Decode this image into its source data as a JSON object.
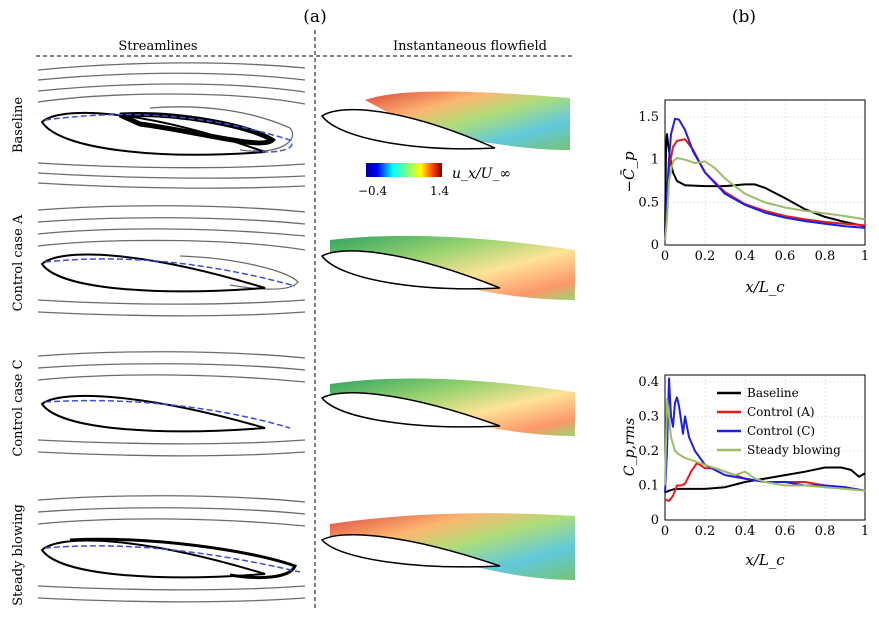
{
  "panel_a": {
    "label": "(a)",
    "col_streamlines": "Streamlines",
    "col_flowfield": "Instantaneous flowfield",
    "rows": [
      "Baseline",
      "Control case A",
      "Control case C",
      "Steady blowing"
    ],
    "colorbar": {
      "label": "u_x/U_∞",
      "min_label": "−0.4",
      "max_label": "1.4"
    }
  },
  "panel_b": {
    "label": "(b)"
  },
  "colors": {
    "baseline": "#000000",
    "control_a": "#e41a1c",
    "control_c": "#1f1fe0",
    "steady": "#9dbd6b",
    "separation": "#3b4fd8"
  },
  "chart_data": [
    {
      "type": "line",
      "title": "",
      "ylabel": "−C̄_p",
      "xlabel": "x/L_c",
      "xlim": [
        0,
        1
      ],
      "ylim": [
        0,
        1.7
      ],
      "xticks": [
        "0",
        "0.2",
        "0.4",
        "0.6",
        "0.8",
        "1"
      ],
      "yticks": [
        "0",
        "0.5",
        "1",
        "1.5"
      ],
      "grid": true,
      "series": [
        {
          "name": "Baseline",
          "color": "#000000",
          "x": [
            0,
            0.005,
            0.01,
            0.02,
            0.04,
            0.06,
            0.1,
            0.2,
            0.3,
            0.4,
            0.45,
            0.5,
            0.6,
            0.7,
            0.8,
            0.9,
            1.0
          ],
          "y": [
            0.1,
            1.15,
            1.3,
            1.1,
            0.85,
            0.75,
            0.7,
            0.69,
            0.69,
            0.71,
            0.71,
            0.67,
            0.55,
            0.42,
            0.33,
            0.27,
            0.22
          ]
        },
        {
          "name": "Control (A)",
          "color": "#e41a1c",
          "x": [
            0,
            0.01,
            0.02,
            0.04,
            0.06,
            0.1,
            0.14,
            0.2,
            0.3,
            0.4,
            0.5,
            0.6,
            0.7,
            0.8,
            0.9,
            1.0
          ],
          "y": [
            0.05,
            0.5,
            0.9,
            1.15,
            1.22,
            1.24,
            1.12,
            0.85,
            0.62,
            0.48,
            0.4,
            0.34,
            0.3,
            0.27,
            0.25,
            0.23
          ]
        },
        {
          "name": "Control (C)",
          "color": "#1f1fe0",
          "x": [
            0,
            0.01,
            0.02,
            0.03,
            0.05,
            0.07,
            0.1,
            0.14,
            0.2,
            0.3,
            0.4,
            0.5,
            0.6,
            0.7,
            0.8,
            0.9,
            1.0
          ],
          "y": [
            0.05,
            0.6,
            1.0,
            1.3,
            1.48,
            1.47,
            1.35,
            1.1,
            0.85,
            0.6,
            0.47,
            0.38,
            0.32,
            0.28,
            0.25,
            0.22,
            0.2
          ]
        },
        {
          "name": "Steady blowing",
          "color": "#9dbd6b",
          "x": [
            0,
            0.01,
            0.02,
            0.04,
            0.06,
            0.1,
            0.15,
            0.2,
            0.25,
            0.3,
            0.4,
            0.5,
            0.6,
            0.7,
            0.8,
            0.9,
            1.0
          ],
          "y": [
            0.05,
            0.3,
            0.75,
            0.98,
            1.02,
            1.0,
            0.96,
            0.98,
            0.9,
            0.78,
            0.6,
            0.5,
            0.44,
            0.4,
            0.37,
            0.34,
            0.3
          ]
        }
      ]
    },
    {
      "type": "line",
      "title": "",
      "ylabel": "C_p,rms",
      "xlabel": "x/L_c",
      "xlim": [
        0,
        1
      ],
      "ylim": [
        0,
        0.42
      ],
      "xticks": [
        "0",
        "0.2",
        "0.4",
        "0.6",
        "0.8",
        "1"
      ],
      "yticks": [
        "0",
        "0.1",
        "0.2",
        "0.3",
        "0.4"
      ],
      "grid": true,
      "legend": "top-right",
      "series": [
        {
          "name": "Baseline",
          "color": "#000000",
          "x": [
            0,
            0.02,
            0.05,
            0.1,
            0.2,
            0.3,
            0.4,
            0.5,
            0.6,
            0.7,
            0.8,
            0.88,
            0.93,
            0.97,
            1.0
          ],
          "y": [
            0.08,
            0.085,
            0.09,
            0.09,
            0.09,
            0.095,
            0.11,
            0.12,
            0.13,
            0.14,
            0.152,
            0.152,
            0.145,
            0.125,
            0.135
          ]
        },
        {
          "name": "Control (A)",
          "color": "#e41a1c",
          "x": [
            0,
            0.02,
            0.04,
            0.06,
            0.08,
            0.1,
            0.13,
            0.16,
            0.2,
            0.25,
            0.3,
            0.35,
            0.4,
            0.5,
            0.6,
            0.7,
            0.8,
            0.9,
            1.0
          ],
          "y": [
            0.06,
            0.055,
            0.07,
            0.1,
            0.1,
            0.105,
            0.14,
            0.165,
            0.15,
            0.15,
            0.14,
            0.13,
            0.12,
            0.11,
            0.11,
            0.11,
            0.1,
            0.095,
            0.085
          ]
        },
        {
          "name": "Control (C)",
          "color": "#1f1fe0",
          "x": [
            0,
            0.01,
            0.02,
            0.03,
            0.04,
            0.05,
            0.06,
            0.07,
            0.09,
            0.1,
            0.12,
            0.15,
            0.2,
            0.3,
            0.4,
            0.5,
            0.6,
            0.7,
            0.8,
            0.9,
            1.0
          ],
          "y": [
            0.08,
            0.2,
            0.41,
            0.3,
            0.27,
            0.34,
            0.355,
            0.33,
            0.25,
            0.3,
            0.24,
            0.2,
            0.16,
            0.13,
            0.12,
            0.11,
            0.11,
            0.1,
            0.1,
            0.095,
            0.085
          ]
        },
        {
          "name": "Steady blowing",
          "color": "#9dbd6b",
          "x": [
            0,
            0.01,
            0.02,
            0.03,
            0.05,
            0.07,
            0.1,
            0.15,
            0.2,
            0.25,
            0.3,
            0.35,
            0.4,
            0.45,
            0.5,
            0.6,
            0.7,
            0.8,
            0.9,
            1.0
          ],
          "y": [
            0.1,
            0.35,
            0.3,
            0.24,
            0.2,
            0.19,
            0.18,
            0.17,
            0.16,
            0.15,
            0.14,
            0.13,
            0.14,
            0.12,
            0.11,
            0.1,
            0.1,
            0.095,
            0.09,
            0.085
          ]
        }
      ]
    }
  ]
}
